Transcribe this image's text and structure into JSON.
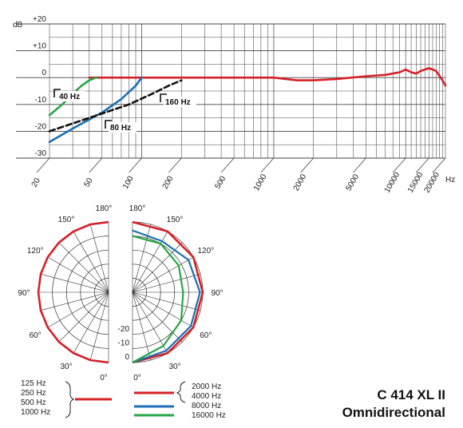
{
  "chart_data": [
    {
      "type": "line",
      "title": "",
      "xlabel": "Hz",
      "ylabel": "dB",
      "x_scale": "log",
      "xlim": [
        20,
        20000
      ],
      "ylim": [
        -30,
        20
      ],
      "x_ticks": [
        "20",
        "50",
        "100",
        "200",
        "500",
        "1000",
        "2000",
        "5000",
        "10000",
        "15000",
        "20000"
      ],
      "y_ticks": [
        "+20",
        "+10",
        "0",
        "-10",
        "-20",
        "-30"
      ],
      "grid": true,
      "series": [
        {
          "name": "",
          "color": "#d62027",
          "style": "solid",
          "points": [
            [
              40,
              0
            ],
            [
              100,
              0
            ],
            [
              200,
              0
            ],
            [
              500,
              0
            ],
            [
              1000,
              0
            ],
            [
              1500,
              -1
            ],
            [
              2000,
              -1
            ],
            [
              3000,
              -0.5
            ],
            [
              5000,
              0.5
            ],
            [
              7000,
              1
            ],
            [
              9000,
              2
            ],
            [
              10000,
              3
            ],
            [
              11000,
              2
            ],
            [
              12000,
              1.5
            ],
            [
              13000,
              2.5
            ],
            [
              15000,
              3.5
            ],
            [
              17000,
              2.5
            ],
            [
              19000,
              -1
            ],
            [
              20000,
              -3
            ]
          ]
        },
        {
          "name": "40 Hz",
          "color": "#27a645",
          "style": "solid",
          "points": [
            [
              20,
              -14
            ],
            [
              25,
              -10
            ],
            [
              30,
              -6
            ],
            [
              35,
              -3
            ],
            [
              40,
              -1
            ],
            [
              45,
              0
            ]
          ]
        },
        {
          "name": "80 Hz",
          "color": "#1a6fb5",
          "style": "solid",
          "points": [
            [
              20,
              -24
            ],
            [
              30,
              -19
            ],
            [
              50,
              -13
            ],
            [
              70,
              -8
            ],
            [
              90,
              -3
            ],
            [
              100,
              0
            ]
          ]
        },
        {
          "name": "160 Hz",
          "color": "#111111",
          "style": "dashed",
          "points": [
            [
              20,
              -20
            ],
            [
              40,
              -15
            ],
            [
              80,
              -10
            ],
            [
              120,
              -6
            ],
            [
              160,
              -3
            ],
            [
              200,
              -1
            ]
          ]
        }
      ],
      "annotations": [
        "40 Hz",
        "80 Hz",
        "160 Hz"
      ]
    },
    {
      "type": "polar",
      "angle_labels_left": [
        "180°",
        "150°",
        "120°",
        "90°",
        "60°",
        "30°",
        "0°"
      ],
      "angle_labels_right": [
        "180°",
        "150°",
        "120°",
        "90°",
        "60°",
        "30°",
        "0°"
      ],
      "radial_labels": [
        "-20",
        "-10",
        "0"
      ],
      "legend": [
        {
          "labels": [
            "125 Hz",
            "250 Hz",
            "500 Hz",
            "1000 Hz"
          ],
          "color": "#d62027"
        },
        {
          "labels": [
            "2000 Hz",
            "4000 Hz"
          ],
          "color": "#d62027"
        },
        {
          "labels": [
            "8000 Hz"
          ],
          "color": "#1a6fb5"
        },
        {
          "labels": [
            "16000 Hz"
          ],
          "color": "#27a645"
        }
      ],
      "patterns_right": [
        {
          "name": "2000/4000 Hz",
          "color": "#d62027",
          "level_db": [
            0,
            0,
            0,
            0,
            0,
            0,
            0
          ]
        },
        {
          "name": "8000 Hz",
          "color": "#1a6fb5",
          "level_db": [
            -3,
            -4,
            -2,
            -1,
            -1,
            -1,
            0
          ]
        },
        {
          "name": "16000 Hz",
          "color": "#27a645",
          "level_db": [
            -5,
            -5,
            -6,
            -7,
            -5,
            -3,
            0
          ]
        }
      ]
    }
  ],
  "model": {
    "name": "C 414 XL II",
    "pattern": "Omnidirectional"
  }
}
